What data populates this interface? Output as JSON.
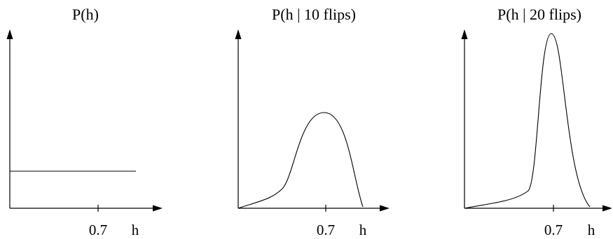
{
  "panels": [
    {
      "title": "P(h)",
      "tick_label": "0.7",
      "x_label": "h",
      "shape": "uniform"
    },
    {
      "title": "P(h | 10 flips)",
      "tick_label": "0.7",
      "x_label": "h",
      "shape": "peak after 10 flips"
    },
    {
      "title": "P(h | 20 flips)",
      "tick_label": "0.7",
      "x_label": "h",
      "shape": "sharp peak after 20 flips"
    }
  ]
}
